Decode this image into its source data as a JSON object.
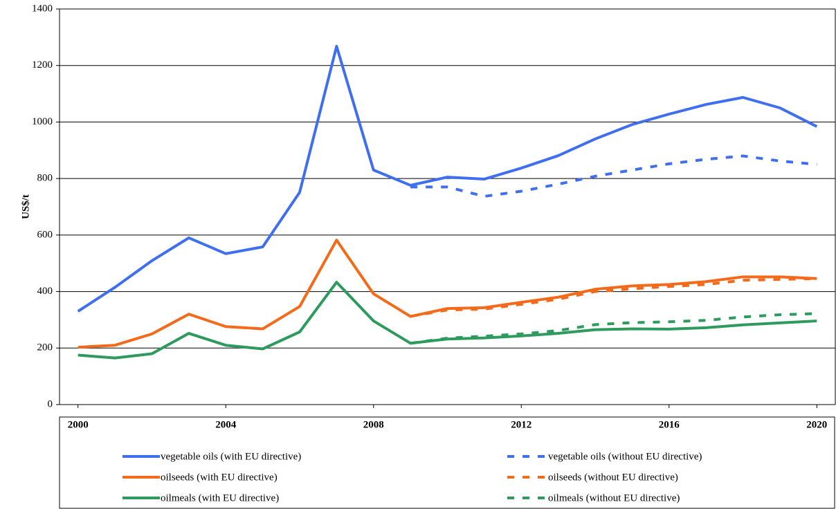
{
  "chart_data": {
    "type": "line",
    "y_label": "US$/t",
    "x": [
      2000,
      2001,
      2002,
      2003,
      2004,
      2005,
      2006,
      2007,
      2008,
      2009,
      2010,
      2011,
      2012,
      2013,
      2014,
      2015,
      2016,
      2017,
      2018,
      2019,
      2020
    ],
    "xlim": [
      1999.5,
      2020.5
    ],
    "xticks": [
      2000,
      2004,
      2008,
      2012,
      2016,
      2020
    ],
    "ylim": [
      0,
      1400
    ],
    "yticks": [
      0,
      200,
      400,
      600,
      800,
      1000,
      1200,
      1400
    ],
    "grid": true,
    "series": [
      {
        "name": "vegetable oils (with EU directive)",
        "color": "#3f6fef",
        "dashed": false,
        "values": [
          330,
          415,
          509,
          590,
          534,
          558,
          751,
          1268,
          830,
          776,
          805,
          798,
          837,
          881,
          940,
          991,
          1028,
          1062,
          1087,
          1050,
          984
        ]
      },
      {
        "name": "vegetable oils (without EU directive)",
        "color": "#3f6fef",
        "dashed": true,
        "values": [
          null,
          null,
          null,
          null,
          null,
          null,
          null,
          null,
          null,
          770,
          770,
          737,
          755,
          780,
          808,
          830,
          852,
          868,
          880,
          862,
          850
        ]
      },
      {
        "name": "oilseeds (with EU directive)",
        "color": "#f36a1b",
        "dashed": false,
        "values": [
          203,
          210,
          250,
          320,
          276,
          268,
          347,
          582,
          392,
          312,
          340,
          343,
          362,
          380,
          408,
          420,
          425,
          435,
          452,
          452,
          446
        ]
      },
      {
        "name": "oilseeds (without EU directive)",
        "color": "#f36a1b",
        "dashed": true,
        "values": [
          null,
          null,
          null,
          null,
          null,
          null,
          null,
          null,
          null,
          312,
          335,
          338,
          355,
          373,
          400,
          410,
          418,
          425,
          440,
          443,
          446
        ]
      },
      {
        "name": "oilmeals (with EU directive)",
        "color": "#2e9a5e",
        "dashed": false,
        "values": [
          175,
          165,
          180,
          252,
          210,
          197,
          257,
          433,
          296,
          217,
          232,
          236,
          243,
          252,
          265,
          268,
          267,
          272,
          282,
          289,
          296
        ]
      },
      {
        "name": "oilmeals (without EU directive)",
        "color": "#2e9a5e",
        "dashed": true,
        "values": [
          null,
          null,
          null,
          null,
          null,
          null,
          null,
          null,
          null,
          217,
          235,
          242,
          250,
          262,
          283,
          290,
          293,
          298,
          310,
          318,
          322
        ]
      }
    ]
  }
}
